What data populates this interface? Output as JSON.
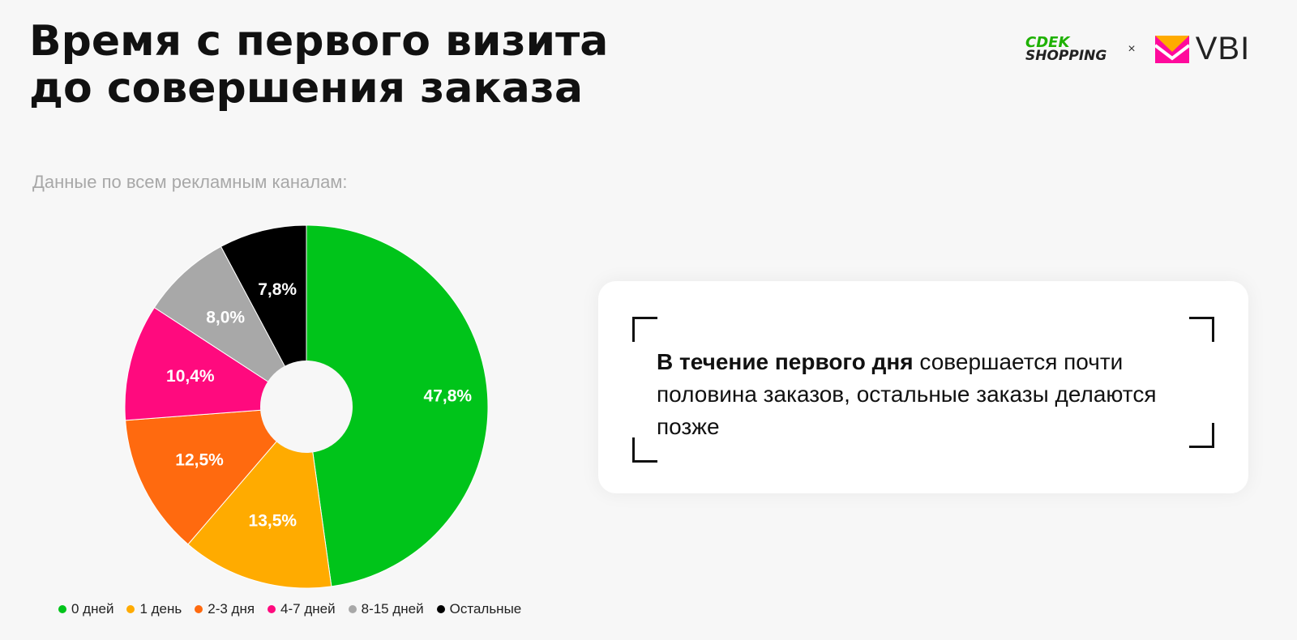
{
  "header": {
    "title_line1": "Время с первого визита",
    "title_line2": "до совершения заказа",
    "subtitle": "Данные по всем рекламным каналам:"
  },
  "logos": {
    "cdek_line1": "CDEK",
    "cdek_line2": "SHOPPING",
    "separator": "×",
    "vbi": "VBI"
  },
  "chart_data": {
    "type": "pie",
    "donut": true,
    "categories": [
      "0 дней",
      "1 день",
      "2-3 дня",
      "4-7 дней",
      "8-15 дней",
      "Остальные"
    ],
    "values": [
      47.8,
      13.5,
      12.5,
      10.4,
      8.0,
      7.8
    ],
    "labels": [
      "47,8%",
      "13,5%",
      "12,5%",
      "10,4%",
      "8,0%",
      "7,8%"
    ],
    "colors": [
      "#00c41a",
      "#ffab00",
      "#ff6a0f",
      "#ff0a7e",
      "#a8a8a8",
      "#000000"
    ],
    "legend_position": "bottom"
  },
  "card": {
    "bold": "В течение первого дня",
    "text": " совершается почти половина заказов, остальные заказы делаются позже"
  }
}
